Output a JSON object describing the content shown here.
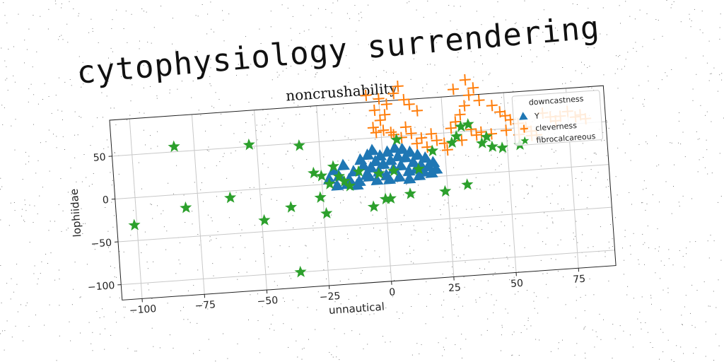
{
  "banner": {
    "text": "cytophysiology surrendering"
  },
  "chart_data": {
    "type": "scatter",
    "title": "noncrushability",
    "xlabel": "unnautical",
    "ylabel": "lophiidae",
    "xlim": [
      -108,
      90
    ],
    "ylim": [
      -118,
      92
    ],
    "xticks": [
      -100,
      -75,
      -50,
      -25,
      0,
      25,
      50,
      75
    ],
    "yticks": [
      -100,
      -50,
      0,
      50
    ],
    "grid": true,
    "legend": {
      "title": "downcastness",
      "position": "top-right"
    },
    "series": [
      {
        "name": "Y",
        "marker": "triangle",
        "color": "#1f77b4",
        "points": [
          [
            -20,
            15
          ],
          [
            -18,
            8
          ],
          [
            -16,
            20
          ],
          [
            -14,
            3
          ],
          [
            -12,
            12
          ],
          [
            -10,
            0
          ],
          [
            -9,
            25
          ],
          [
            -8,
            18
          ],
          [
            -7,
            7
          ],
          [
            -6,
            30
          ],
          [
            -5,
            15
          ],
          [
            -4,
            35
          ],
          [
            -3,
            22
          ],
          [
            -2,
            10
          ],
          [
            -1,
            28
          ],
          [
            0,
            18
          ],
          [
            1,
            5
          ],
          [
            2,
            32
          ],
          [
            3,
            22
          ],
          [
            4,
            12
          ],
          [
            5,
            36
          ],
          [
            6,
            26
          ],
          [
            7,
            15
          ],
          [
            8,
            34
          ],
          [
            9,
            24
          ],
          [
            10,
            8
          ],
          [
            11,
            30
          ],
          [
            12,
            18
          ],
          [
            13,
            10
          ],
          [
            14,
            26
          ],
          [
            15,
            14
          ],
          [
            16,
            6
          ],
          [
            17,
            22
          ],
          [
            18,
            12
          ],
          [
            19,
            4
          ],
          [
            20,
            16
          ],
          [
            21,
            8
          ],
          [
            -22,
            5
          ],
          [
            -15,
            -2
          ],
          [
            -11,
            -4
          ],
          [
            -3,
            0
          ],
          [
            6,
            2
          ],
          [
            14,
            2
          ],
          [
            -19,
            -3
          ],
          [
            -6,
            5
          ],
          [
            2,
            0
          ],
          [
            10,
            -1
          ]
        ]
      },
      {
        "name": "cleverness",
        "marker": "plus",
        "color": "#ff7f0e",
        "points": [
          [
            -5,
            100
          ],
          [
            0,
            95
          ],
          [
            3,
            88
          ],
          [
            6,
            100
          ],
          [
            8,
            108
          ],
          [
            10,
            92
          ],
          [
            12,
            86
          ],
          [
            15,
            78
          ],
          [
            -2,
            82
          ],
          [
            2,
            76
          ],
          [
            0,
            70
          ],
          [
            -3,
            62
          ],
          [
            1,
            58
          ],
          [
            4,
            55
          ],
          [
            10,
            60
          ],
          [
            12,
            52
          ],
          [
            16,
            46
          ],
          [
            20,
            50
          ],
          [
            22,
            42
          ],
          [
            25,
            38
          ],
          [
            28,
            55
          ],
          [
            30,
            62
          ],
          [
            32,
            70
          ],
          [
            34,
            80
          ],
          [
            36,
            92
          ],
          [
            38,
            100
          ],
          [
            30,
            100
          ],
          [
            35,
            110
          ],
          [
            40,
            85
          ],
          [
            45,
            78
          ],
          [
            48,
            70
          ],
          [
            50,
            65
          ],
          [
            52,
            60
          ],
          [
            55,
            55
          ],
          [
            58,
            50
          ],
          [
            60,
            45
          ],
          [
            62,
            40
          ],
          [
            65,
            65
          ],
          [
            68,
            60
          ],
          [
            70,
            55
          ],
          [
            72,
            60
          ],
          [
            75,
            65
          ],
          [
            78,
            58
          ],
          [
            80,
            60
          ],
          [
            82,
            55
          ],
          [
            60,
            40
          ],
          [
            55,
            42
          ],
          [
            36,
            52
          ],
          [
            40,
            48
          ],
          [
            26,
            30
          ],
          [
            18,
            35
          ],
          [
            14,
            40
          ],
          [
            8,
            48
          ],
          [
            5,
            52
          ],
          [
            -2,
            56
          ],
          [
            50,
            48
          ],
          [
            44,
            45
          ],
          [
            38,
            45
          ],
          [
            32,
            40
          ]
        ]
      },
      {
        "name": "fibrocalcareous",
        "marker": "star",
        "color": "#2ca02c",
        "points": [
          [
            -101,
            -32
          ],
          [
            -83,
            56
          ],
          [
            -80,
            -16
          ],
          [
            -62,
            -8
          ],
          [
            -53,
            52
          ],
          [
            -49,
            -37
          ],
          [
            -38,
            -24
          ],
          [
            -33,
            47
          ],
          [
            -28,
            14
          ],
          [
            -26,
            -15
          ],
          [
            -24,
            -34
          ],
          [
            -22,
            0
          ],
          [
            -20,
            20
          ],
          [
            -18,
            8
          ],
          [
            -16,
            2
          ],
          [
            -10,
            12
          ],
          [
            -5,
            -30
          ],
          [
            -2,
            8
          ],
          [
            0,
            -22
          ],
          [
            2,
            -22
          ],
          [
            4,
            10
          ],
          [
            6,
            46
          ],
          [
            10,
            -18
          ],
          [
            14,
            10
          ],
          [
            24,
            -18
          ],
          [
            28,
            38
          ],
          [
            30,
            45
          ],
          [
            32,
            56
          ],
          [
            33,
            -12
          ],
          [
            35,
            58
          ],
          [
            40,
            35
          ],
          [
            42,
            42
          ],
          [
            44,
            30
          ],
          [
            -36,
            -100
          ],
          [
            20,
            30
          ],
          [
            -14,
            -4
          ],
          [
            -25,
            10
          ],
          [
            48,
            28
          ],
          [
            55,
            30
          ]
        ]
      }
    ]
  }
}
